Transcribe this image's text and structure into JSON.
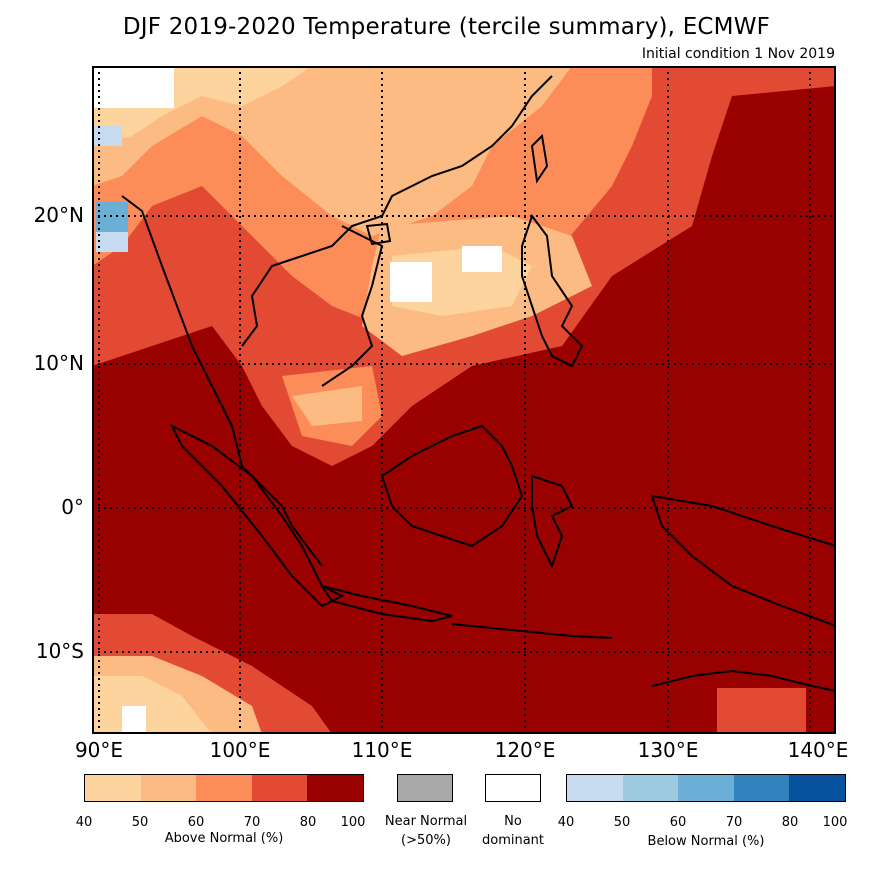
{
  "title": "DJF 2019-2020 Temperature (tercile summary), ECMWF",
  "subtitle": "Initial condition 1 Nov 2019",
  "map": {
    "lat_labels": [
      "20°N",
      "10°N",
      "0°",
      "10°S"
    ],
    "lon_labels": [
      "90°E",
      "100°E",
      "110°E",
      "120°E",
      "130°E",
      "140°E"
    ],
    "gridlines_lat": [
      20,
      10,
      0,
      -10
    ],
    "gridlines_lon": [
      90,
      100,
      110,
      120,
      130,
      140
    ],
    "extent": {
      "lon_min": 90,
      "lon_max": 142,
      "lat_min": -15.5,
      "lat_max": 29.5
    },
    "dominant_category": "Above Normal 80-100%"
  },
  "legend": {
    "above": {
      "label": "Above Normal (%)",
      "ticks": [
        "40",
        "50",
        "60",
        "70",
        "80",
        "100"
      ],
      "colors": [
        "#fdd49e",
        "#fdbb84",
        "#fc8d59",
        "#e34a33",
        "#990000"
      ]
    },
    "near": {
      "label1": "Near Normal",
      "label2": "(>50%)",
      "color": "#a9a9a9"
    },
    "none": {
      "label1": "No",
      "label2": "dominant",
      "color": "#ffffff"
    },
    "below": {
      "label": "Below Normal (%)",
      "ticks": [
        "40",
        "50",
        "60",
        "70",
        "80",
        "100"
      ],
      "colors": [
        "#c6dbef",
        "#9ecae1",
        "#6baed6",
        "#3182bd",
        "#08519c"
      ]
    }
  }
}
